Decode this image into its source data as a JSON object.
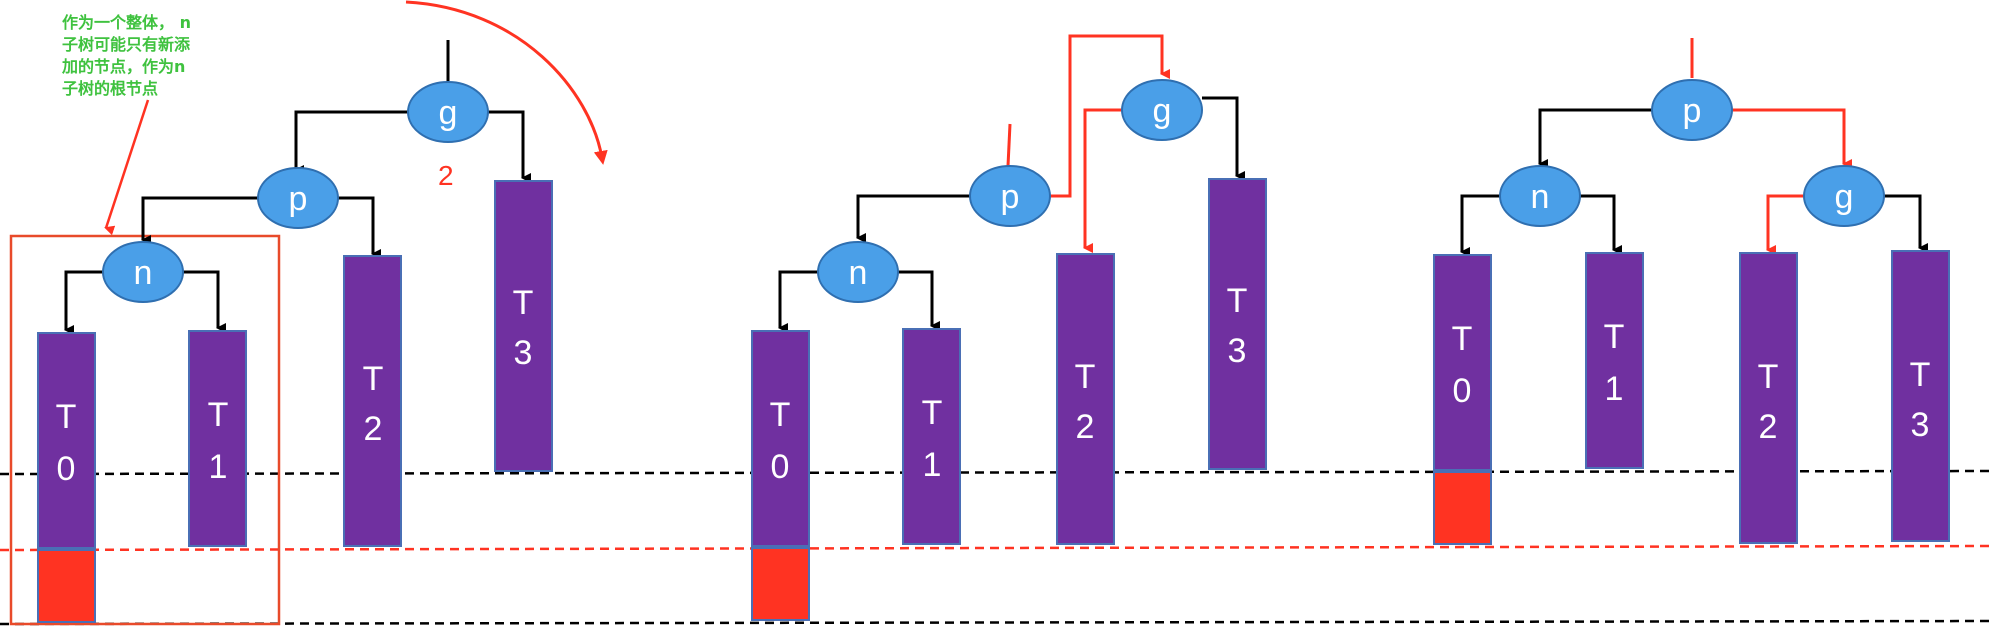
{
  "colors": {
    "node_fill": "#4a9fe8",
    "node_stroke": "#2f6fb0",
    "subtree_fill": "#7030a0",
    "height_increase_fill": "#ff3322",
    "edge": "#000000",
    "highlight_edge": "#ff3322",
    "annotation_text": "#3fc23f",
    "annotation_box": "#e84a2a",
    "baseline_black": "#000000",
    "baseline_red": "#ff3322"
  },
  "annotation": {
    "lines": [
      "作为一个整体， n",
      "子树可能只有新添",
      "加的节点，作为n",
      "子树的根节点"
    ]
  },
  "step_label": "2",
  "panels": [
    {
      "id": "before",
      "nodes": {
        "g": "g",
        "p": "p",
        "n": "n"
      },
      "subtrees": [
        {
          "name": "T0",
          "chars": [
            "T",
            "0"
          ]
        },
        {
          "name": "T1",
          "chars": [
            "T",
            "1"
          ]
        },
        {
          "name": "T2",
          "chars": [
            "T",
            "2"
          ]
        },
        {
          "name": "T3",
          "chars": [
            "T",
            "3"
          ]
        }
      ]
    },
    {
      "id": "rotating",
      "nodes": {
        "g": "g",
        "p": "p",
        "n": "n"
      },
      "subtrees": [
        {
          "name": "T0",
          "chars": [
            "T",
            "0"
          ]
        },
        {
          "name": "T1",
          "chars": [
            "T",
            "1"
          ]
        },
        {
          "name": "T2",
          "chars": [
            "T",
            "2"
          ]
        },
        {
          "name": "T3",
          "chars": [
            "T",
            "3"
          ]
        }
      ]
    },
    {
      "id": "after",
      "nodes": {
        "p": "p",
        "n": "n",
        "g": "g"
      },
      "subtrees": [
        {
          "name": "T0",
          "chars": [
            "T",
            "0"
          ]
        },
        {
          "name": "T1",
          "chars": [
            "T",
            "1"
          ]
        },
        {
          "name": "T2",
          "chars": [
            "T",
            "2"
          ]
        },
        {
          "name": "T3",
          "chars": [
            "T",
            "3"
          ]
        }
      ]
    }
  ]
}
